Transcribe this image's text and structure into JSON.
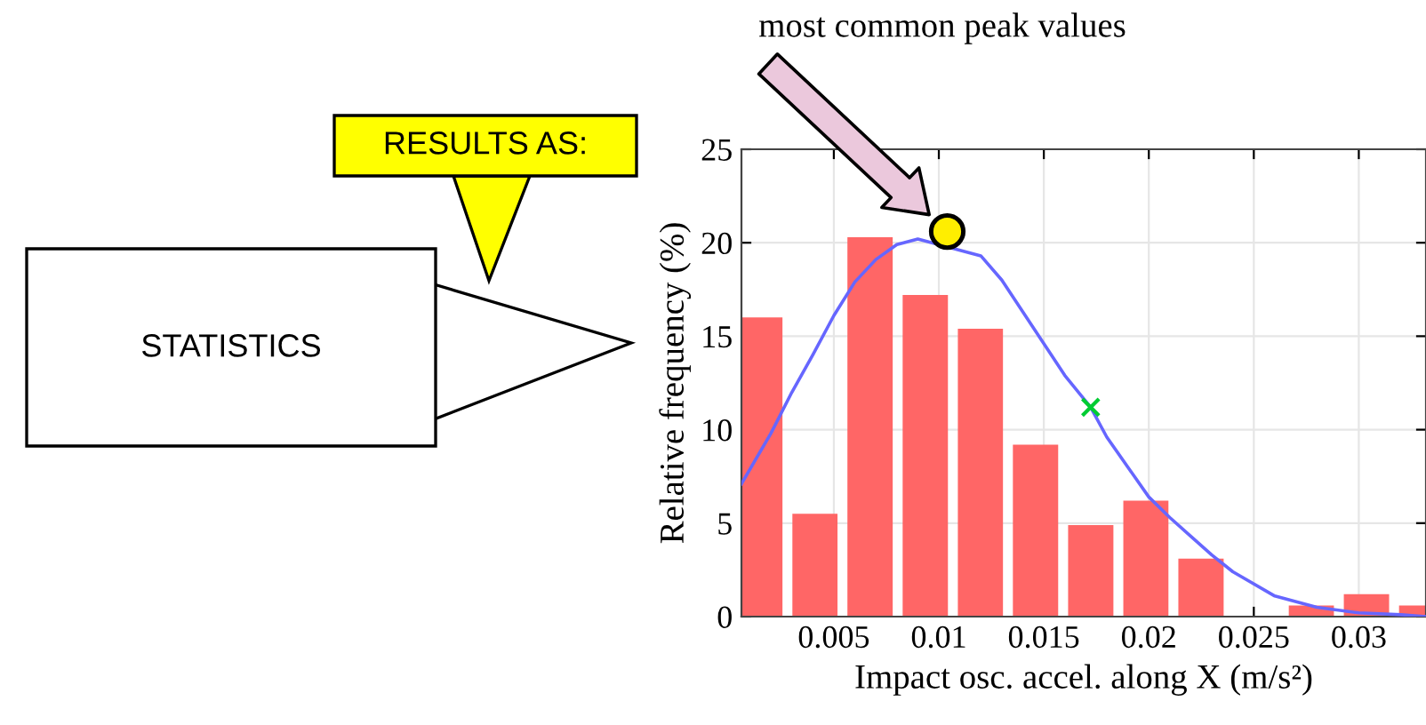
{
  "chart_data": {
    "type": "histogram",
    "xlabel": "Impact osc. accel. along X (m/s²)",
    "ylabel": "Relative frequency (%)",
    "bins": [
      0.00016,
      0.00279,
      0.00541,
      0.00804,
      0.01067,
      0.01329,
      0.01592,
      0.01855,
      0.02117,
      0.0238,
      0.02643,
      0.02905,
      0.03168,
      0.03431
    ],
    "values": [
      16,
      5.5,
      20.3,
      17.2,
      15.4,
      9.2,
      4.9,
      6.2,
      3.1,
      0,
      0.6,
      1.2,
      0.6
    ],
    "color": "#ff6666",
    "series": [
      {
        "type": "line",
        "color": "#6666ff",
        "x": [
          0.0006,
          0.002,
          0.003,
          0.004,
          0.005,
          0.006,
          0.007,
          0.008,
          0.009,
          0.012,
          0.013,
          0.014,
          0.015,
          0.016,
          0.01723,
          0.018,
          0.019,
          0.02,
          0.021,
          0.022,
          0.023,
          0.024,
          0.026,
          0.028,
          0.03,
          0.032,
          0.0332
        ],
        "values": [
          7.1,
          9.8,
          12.0,
          14.0,
          16.1,
          17.9,
          19.1,
          19.9,
          20.2,
          19.3,
          18.0,
          16.3,
          14.6,
          12.9,
          11.2,
          9.6,
          8.0,
          6.4,
          5.3,
          4.3,
          3.3,
          2.4,
          1.1,
          0.5,
          0.2,
          0.1,
          0.0
        ]
      },
      {
        "type": "scatter",
        "color": "#00cc33",
        "marker": "cross",
        "x": [
          0.01723
        ],
        "values": [
          11.2
        ]
      },
      {
        "type": "scatter",
        "color": "#ffee00",
        "marker": "circle",
        "x": [
          0.0104
        ],
        "values": [
          20.6
        ]
      }
    ],
    "annotations": [
      "most common peak values",
      "RESULTS AS:",
      "STATISTICS"
    ],
    "xlim": [
      0.0006,
      0.0332
    ],
    "ylim": [
      0,
      25
    ],
    "xticks": [
      0.005,
      0.01,
      0.015,
      0.02,
      0.025,
      0.03
    ],
    "yticks": [
      0,
      5,
      10,
      15,
      20,
      25
    ],
    "grid": true,
    "legend": false
  }
}
